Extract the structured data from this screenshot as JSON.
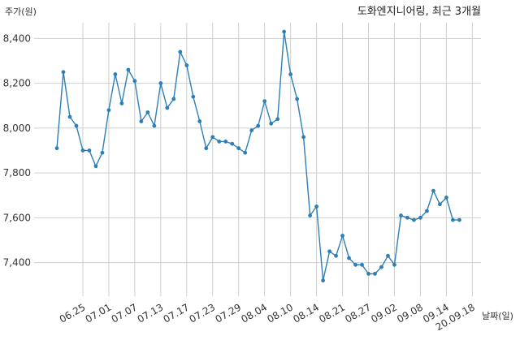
{
  "chart_data": {
    "type": "line",
    "title": "도화엔지니어링, 최근 3개월",
    "ylabel": "주가(원)",
    "xlabel": "날짜(일)",
    "ylim": [
      7250,
      8470
    ],
    "yticks": [
      7400,
      7600,
      7800,
      8000,
      8200,
      8400
    ],
    "ytick_labels": [
      "7,400",
      "7,600",
      "7,800",
      "8,000",
      "8,200",
      "8,400"
    ],
    "xticks": [
      {
        "index": 4,
        "label": "06.25"
      },
      {
        "index": 8,
        "label": "07.01"
      },
      {
        "index": 12,
        "label": "07.07"
      },
      {
        "index": 16,
        "label": "07.13"
      },
      {
        "index": 20,
        "label": "07.17"
      },
      {
        "index": 24,
        "label": "07.23"
      },
      {
        "index": 28,
        "label": "07.29"
      },
      {
        "index": 32,
        "label": "08.04"
      },
      {
        "index": 36,
        "label": "08.10"
      },
      {
        "index": 40,
        "label": "08.14"
      },
      {
        "index": 44,
        "label": "08.21"
      },
      {
        "index": 48,
        "label": "08.27"
      },
      {
        "index": 52,
        "label": "09.02"
      },
      {
        "index": 56,
        "label": "09.08"
      },
      {
        "index": 60,
        "label": "09.14"
      },
      {
        "index": 64,
        "label": "20.09.18"
      }
    ],
    "grid": true,
    "color": "#2e7fb5",
    "series": [
      {
        "values": [
          7910,
          8250,
          8050,
          8010,
          7900,
          7900,
          7830,
          7890,
          8080,
          8240,
          8110,
          8260,
          8210,
          8030,
          8070,
          8010,
          8200,
          8090,
          8130,
          8340,
          8280,
          8140,
          8030,
          7910,
          7960,
          7940,
          7940,
          7930,
          7910,
          7890,
          7990,
          8010,
          8120,
          8020,
          8040,
          8430,
          8240,
          8130,
          7960,
          7610,
          7650,
          7320,
          7450,
          7430,
          7520,
          7420,
          7390,
          7390,
          7350,
          7350,
          7380,
          7430,
          7390,
          7610,
          7600,
          7590,
          7600,
          7630,
          7720,
          7660,
          7690,
          7590,
          7590
        ]
      }
    ]
  }
}
